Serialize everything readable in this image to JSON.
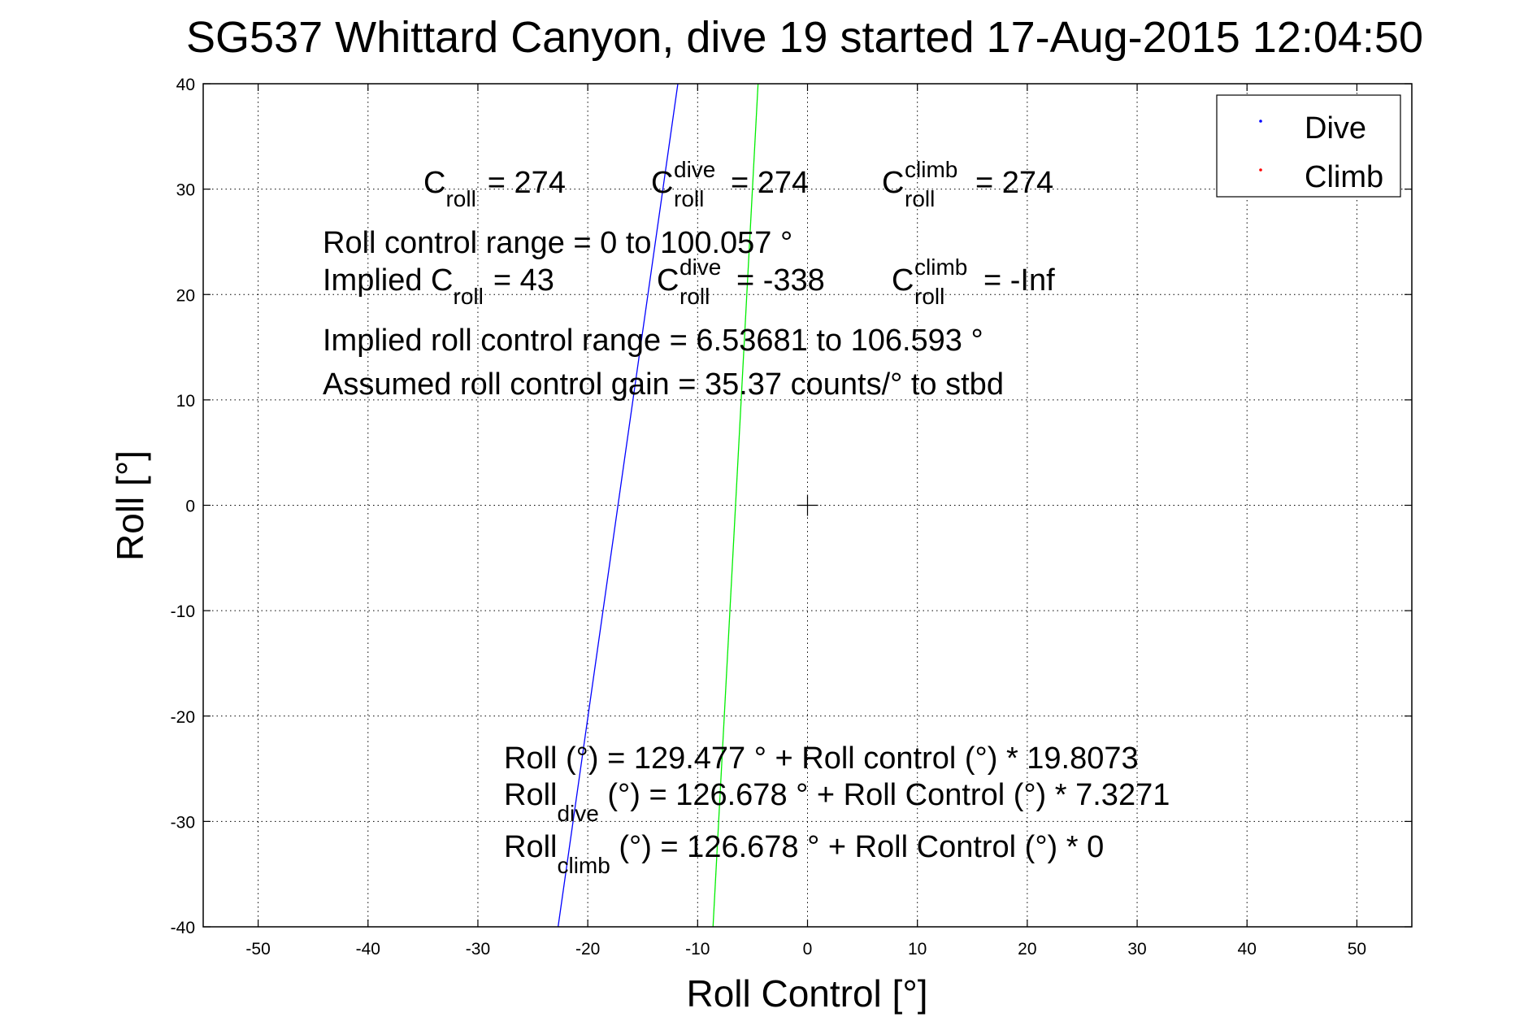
{
  "chart_data": {
    "type": "line",
    "title": "SG537 Whittard Canyon, dive 19 started 17-Aug-2015 12:04:50",
    "xlabel": "Roll Control [°]",
    "ylabel": "Roll [°]",
    "xlim": [
      -55,
      55
    ],
    "ylim": [
      -40,
      40
    ],
    "xticks": [
      -50,
      -40,
      -30,
      -20,
      -10,
      0,
      10,
      20,
      30,
      40,
      50
    ],
    "yticks": [
      -40,
      -30,
      -20,
      -10,
      0,
      10,
      20,
      30,
      40
    ],
    "grid": true,
    "legend_position": "top-right",
    "legend": [
      {
        "name": "Dive",
        "color": "#0000ff",
        "marker": "dot"
      },
      {
        "name": "Climb",
        "color": "#ff0000",
        "marker": "dot"
      }
    ],
    "lines": [
      {
        "color": "#0000ff",
        "points": [
          [
            -22.7,
            -40
          ],
          [
            -11.8,
            40
          ]
        ]
      },
      {
        "color": "#00ee00",
        "points": [
          [
            -8.6,
            -40
          ],
          [
            -4.5,
            40
          ]
        ]
      }
    ],
    "crosshair_marker": {
      "x": 0,
      "y": 0
    },
    "annotations": {
      "c_roll": {
        "label": "C",
        "sub": "roll",
        "value": "=  274"
      },
      "c_roll_dive": {
        "label": "C",
        "sup": "dive",
        "sub": "roll",
        "value": "=  274"
      },
      "c_roll_climb": {
        "label": "C",
        "sup": "climb",
        "sub": "roll",
        "value": "=  274"
      },
      "roll_control_range": "Roll control range = 0 to 100.057 °",
      "implied_c_roll": {
        "label": "Implied C",
        "sub": "roll",
        "value": "=   43"
      },
      "implied_c_roll_dive": {
        "label": "C",
        "sup": "dive",
        "sub": "roll",
        "value": "= -338"
      },
      "implied_c_roll_climb": {
        "label": "C",
        "sup": "climb",
        "sub": "roll",
        "value": "= -Inf"
      },
      "implied_roll_control_range": "Implied roll control range = 6.53681 to 106.593 °",
      "assumed_gain": "Assumed roll control gain = 35.37 counts/° to stbd",
      "roll_eq": "Roll (°) = 129.477 ° + Roll control (°) * 19.8073",
      "roll_dive_eq": {
        "label": "Roll",
        "sub": "dive",
        "rest": " (°) = 126.678 ° + Roll Control (°) * 7.3271"
      },
      "roll_climb_eq": {
        "label": "Roll",
        "sub": "climb",
        "rest": " (°) = 126.678 ° + Roll Control (°) * 0"
      }
    }
  }
}
